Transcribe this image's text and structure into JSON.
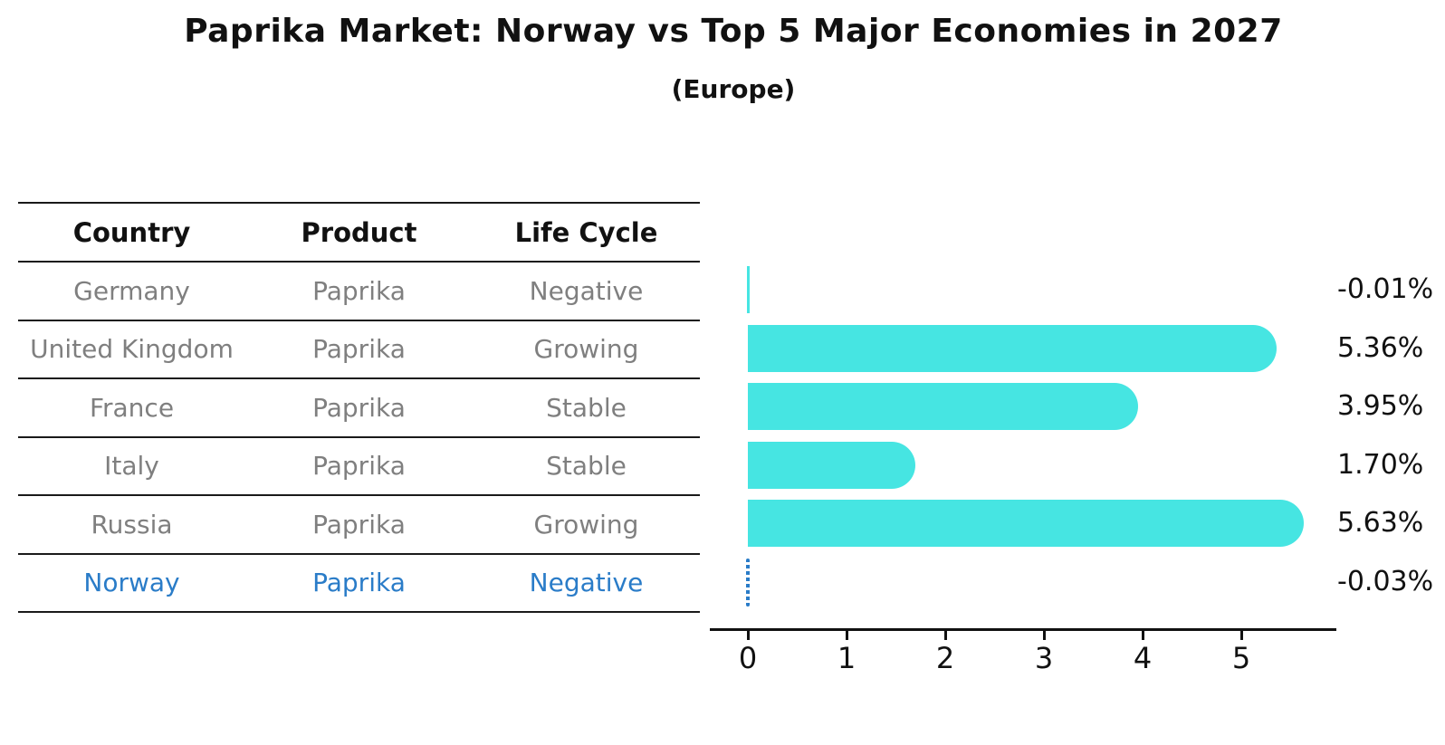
{
  "header": {
    "title": "Paprika Market: Norway vs Top 5 Major Economies in 2027",
    "subtitle": "(Europe)"
  },
  "table": {
    "columns": [
      "Country",
      "Product",
      "Life Cycle"
    ],
    "rows": [
      {
        "country": "Germany",
        "product": "Paprika",
        "life_cycle": "Negative",
        "highlight": false
      },
      {
        "country": "United Kingdom",
        "product": "Paprika",
        "life_cycle": "Growing",
        "highlight": false
      },
      {
        "country": "France",
        "product": "Paprika",
        "life_cycle": "Stable",
        "highlight": false
      },
      {
        "country": "Italy",
        "product": "Paprika",
        "life_cycle": "Stable",
        "highlight": false
      },
      {
        "country": "Russia",
        "product": "Paprika",
        "life_cycle": "Growing",
        "highlight": false
      },
      {
        "country": "Norway",
        "product": "Paprika",
        "life_cycle": "Negative",
        "highlight": true
      }
    ]
  },
  "chart_data": {
    "type": "bar",
    "orientation": "horizontal",
    "title": "Paprika Market: Norway vs Top 5 Major Economies in 2027",
    "subtitle": "(Europe)",
    "categories": [
      "Germany",
      "United Kingdom",
      "France",
      "Italy",
      "Russia",
      "Norway"
    ],
    "values": [
      -0.01,
      5.36,
      3.95,
      1.7,
      5.63,
      -0.03
    ],
    "value_labels": [
      "-0.01%",
      "5.36%",
      "3.95%",
      "1.70%",
      "5.63%",
      "-0.03%"
    ],
    "x_ticks": [
      0,
      1,
      2,
      3,
      4,
      5
    ],
    "xlim": [
      -0.35,
      5.95
    ],
    "xlabel": "",
    "ylabel": "",
    "grid": false,
    "legend": false,
    "highlight_category": "Norway",
    "bar_color": "#46e5e2",
    "highlight_color": "#2a7cc8",
    "label_color": "#111111",
    "muted_text_color": "#7f7f7f"
  }
}
